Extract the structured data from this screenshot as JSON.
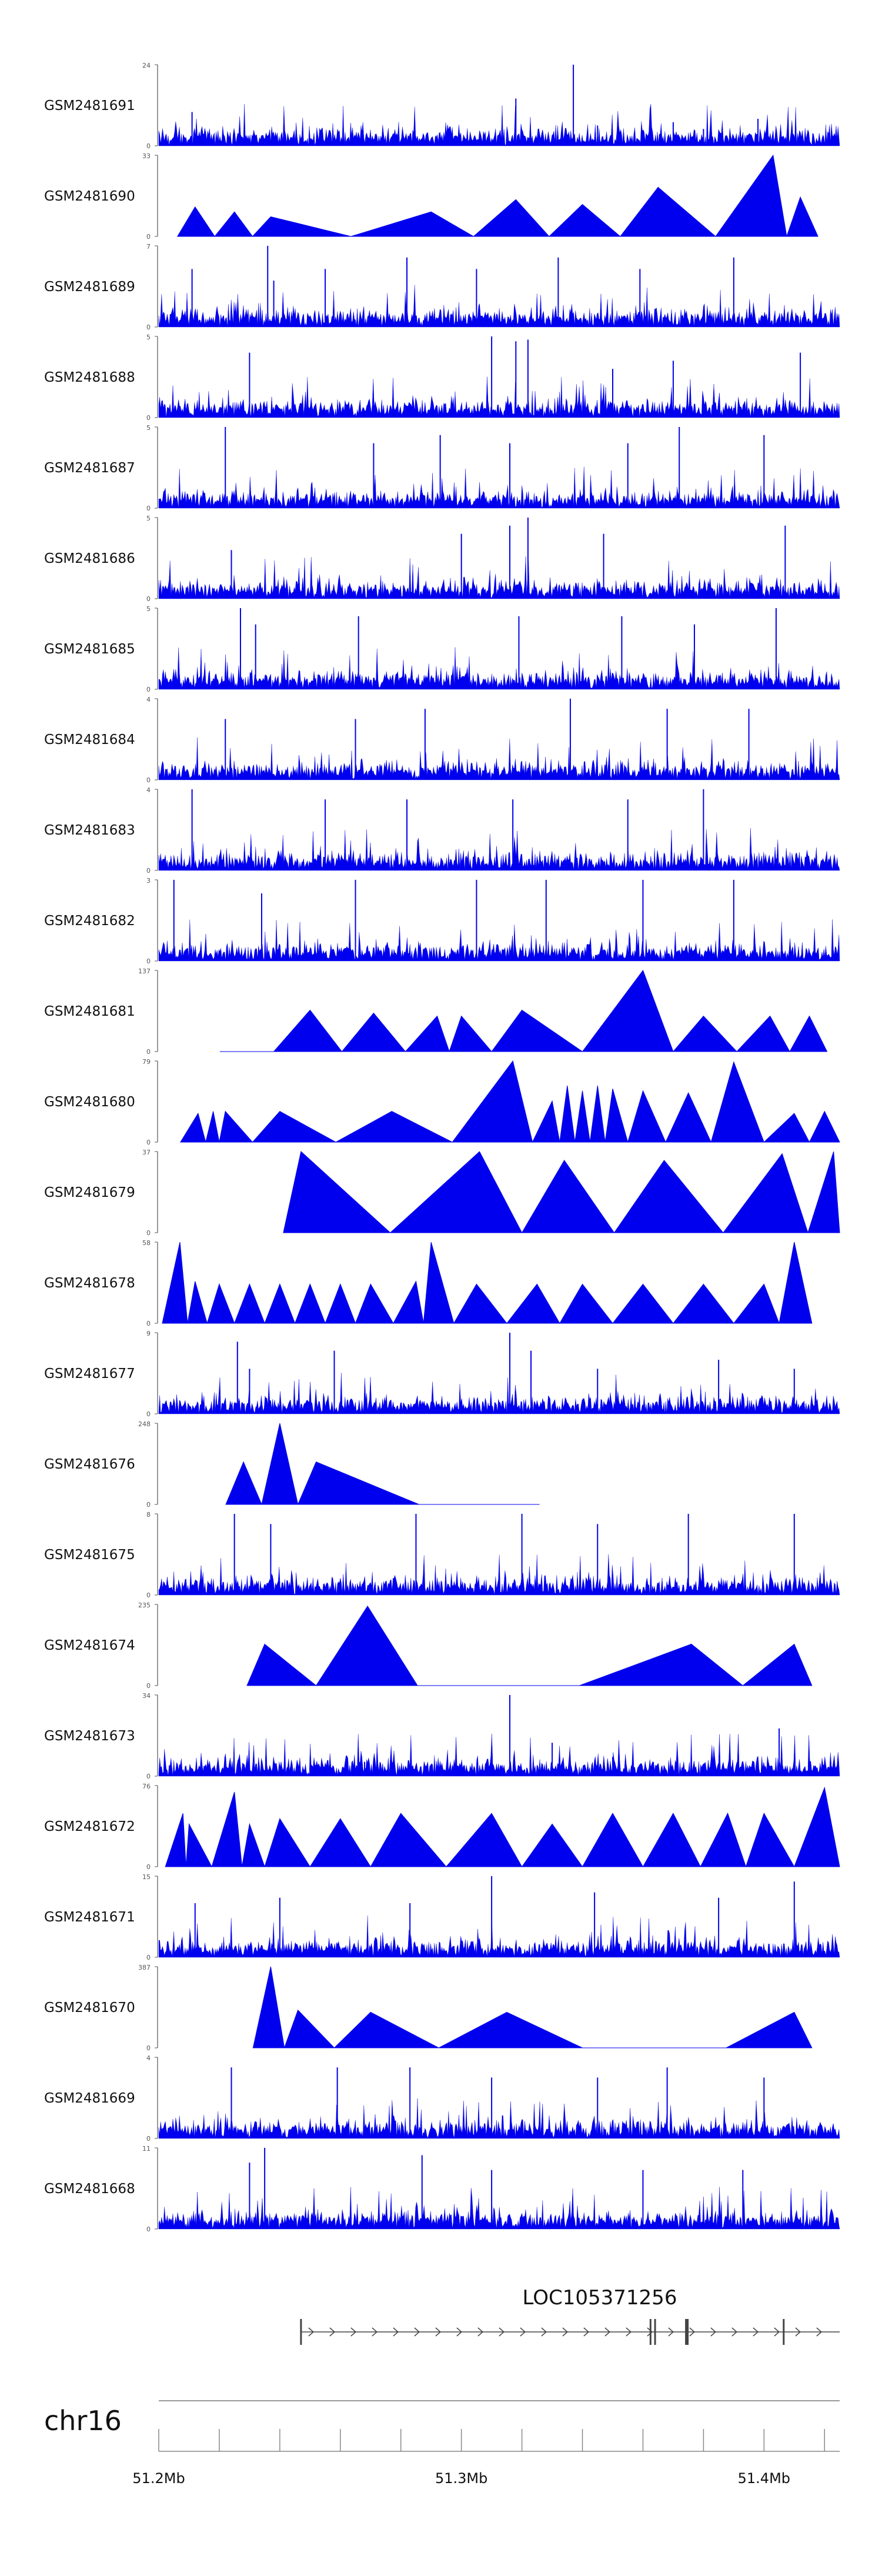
{
  "chart_data": {
    "type": "area",
    "description_free": true,
    "genome": {
      "chromosome": "chr16",
      "x_range_mb": [
        51.2,
        51.425
      ],
      "ticks_mb": [
        51.2,
        51.22,
        51.24,
        51.26,
        51.28,
        51.3,
        51.32,
        51.34,
        51.36,
        51.38,
        51.4,
        51.42
      ],
      "tick_labels": [
        {
          "value": 51.2,
          "label": "51.2Mb"
        },
        {
          "value": 51.3,
          "label": "51.3Mb"
        },
        {
          "value": 51.4,
          "label": "51.4Mb"
        }
      ]
    },
    "gene": {
      "name": "LOC105371256",
      "start_mb": 51.247,
      "end_mb": 51.425,
      "strand": "+",
      "exons_mb": [
        51.247,
        51.3625,
        51.364,
        51.3745,
        51.4065
      ]
    },
    "tracks": [
      {
        "name": "GSM2481691",
        "ymax": 24,
        "style": "spiky",
        "peaks": [
          [
            51.211,
            10
          ],
          [
            51.318,
            14
          ],
          [
            51.337,
            24
          ],
          [
            51.345,
            6
          ],
          [
            51.37,
            7
          ],
          [
            51.38,
            5
          ],
          [
            51.398,
            8
          ]
        ]
      },
      {
        "name": "GSM2481690",
        "ymax": 33,
        "style": "triangles",
        "peaks": [
          [
            51.212,
            12
          ],
          [
            51.225,
            10
          ],
          [
            51.237,
            8
          ],
          [
            51.29,
            10
          ],
          [
            51.318,
            15
          ],
          [
            51.34,
            13
          ],
          [
            51.365,
            20
          ],
          [
            51.403,
            33
          ],
          [
            51.412,
            16
          ]
        ]
      },
      {
        "name": "GSM2481689",
        "ymax": 7,
        "style": "spiky",
        "peaks": [
          [
            51.211,
            5
          ],
          [
            51.236,
            7
          ],
          [
            51.238,
            4
          ],
          [
            51.255,
            5
          ],
          [
            51.282,
            6
          ],
          [
            51.305,
            5
          ],
          [
            51.332,
            6
          ],
          [
            51.359,
            5
          ],
          [
            51.39,
            6
          ]
        ]
      },
      {
        "name": "GSM2481688",
        "ymax": 5,
        "style": "spiky",
        "peaks": [
          [
            51.23,
            4
          ],
          [
            51.31,
            5
          ],
          [
            51.318,
            4.7
          ],
          [
            51.322,
            4.8
          ],
          [
            51.35,
            3
          ],
          [
            51.37,
            3.5
          ],
          [
            51.412,
            4
          ]
        ]
      },
      {
        "name": "GSM2481687",
        "ymax": 5,
        "style": "spiky",
        "peaks": [
          [
            51.222,
            5
          ],
          [
            51.271,
            4
          ],
          [
            51.293,
            4.5
          ],
          [
            51.316,
            4
          ],
          [
            51.355,
            4
          ],
          [
            51.372,
            5
          ],
          [
            51.4,
            4.5
          ]
        ]
      },
      {
        "name": "GSM2481686",
        "ymax": 5,
        "style": "spiky",
        "peaks": [
          [
            51.224,
            3
          ],
          [
            51.3,
            4
          ],
          [
            51.316,
            4.5
          ],
          [
            51.322,
            5
          ],
          [
            51.347,
            4
          ],
          [
            51.407,
            4.5
          ]
        ]
      },
      {
        "name": "GSM2481685",
        "ymax": 5,
        "style": "spiky",
        "peaks": [
          [
            51.227,
            5
          ],
          [
            51.232,
            4
          ],
          [
            51.266,
            4.5
          ],
          [
            51.319,
            4.5
          ],
          [
            51.353,
            4.5
          ],
          [
            51.377,
            4
          ],
          [
            51.404,
            5
          ]
        ]
      },
      {
        "name": "GSM2481684",
        "ymax": 4,
        "style": "spiky",
        "peaks": [
          [
            51.222,
            3
          ],
          [
            51.265,
            3
          ],
          [
            51.288,
            3.5
          ],
          [
            51.336,
            4
          ],
          [
            51.368,
            3.5
          ],
          [
            51.395,
            3.5
          ]
        ]
      },
      {
        "name": "GSM2481683",
        "ymax": 4,
        "style": "spiky",
        "peaks": [
          [
            51.211,
            4
          ],
          [
            51.255,
            3.5
          ],
          [
            51.282,
            3.5
          ],
          [
            51.317,
            3.5
          ],
          [
            51.355,
            3.5
          ],
          [
            51.38,
            4
          ]
        ]
      },
      {
        "name": "GSM2481682",
        "ymax": 3,
        "style": "spiky",
        "peaks": [
          [
            51.205,
            3
          ],
          [
            51.234,
            2.5
          ],
          [
            51.265,
            3
          ],
          [
            51.305,
            3
          ],
          [
            51.328,
            3
          ],
          [
            51.36,
            3
          ],
          [
            51.39,
            3
          ]
        ]
      },
      {
        "name": "GSM2481681",
        "ymax": 137,
        "style": "triangles",
        "peaks": [
          [
            51.226,
            0
          ],
          [
            51.25,
            70
          ],
          [
            51.271,
            65
          ],
          [
            51.292,
            60
          ],
          [
            51.3,
            60
          ],
          [
            51.32,
            70
          ],
          [
            51.36,
            137
          ],
          [
            51.38,
            60
          ],
          [
            51.402,
            60
          ],
          [
            51.415,
            60
          ]
        ]
      },
      {
        "name": "GSM2481680",
        "ymax": 79,
        "style": "triangles",
        "peaks": [
          [
            51.213,
            28
          ],
          [
            51.218,
            30
          ],
          [
            51.222,
            30
          ],
          [
            51.24,
            30
          ],
          [
            51.277,
            30
          ],
          [
            51.317,
            79
          ],
          [
            51.33,
            40
          ],
          [
            51.335,
            55
          ],
          [
            51.34,
            50
          ],
          [
            51.345,
            55
          ],
          [
            51.35,
            52
          ],
          [
            51.36,
            50
          ],
          [
            51.375,
            48
          ],
          [
            51.39,
            78
          ],
          [
            51.41,
            28
          ],
          [
            51.42,
            30
          ]
        ]
      },
      {
        "name": "GSM2481679",
        "ymax": 37,
        "style": "triangles",
        "peaks": [
          [
            51.247,
            37
          ],
          [
            51.306,
            37
          ],
          [
            51.334,
            33
          ],
          [
            51.367,
            33
          ],
          [
            51.406,
            36
          ],
          [
            51.423,
            37
          ]
        ]
      },
      {
        "name": "GSM2481678",
        "ymax": 58,
        "style": "triangles",
        "peaks": [
          [
            51.207,
            58
          ],
          [
            51.212,
            30
          ],
          [
            51.22,
            28
          ],
          [
            51.23,
            28
          ],
          [
            51.24,
            28
          ],
          [
            51.25,
            28
          ],
          [
            51.26,
            28
          ],
          [
            51.27,
            28
          ],
          [
            51.285,
            30
          ],
          [
            51.29,
            58
          ],
          [
            51.305,
            28
          ],
          [
            51.325,
            28
          ],
          [
            51.34,
            28
          ],
          [
            51.36,
            28
          ],
          [
            51.38,
            28
          ],
          [
            51.4,
            28
          ],
          [
            51.41,
            58
          ]
        ]
      },
      {
        "name": "GSM2481677",
        "ymax": 9,
        "style": "spiky",
        "peaks": [
          [
            51.226,
            8
          ],
          [
            51.23,
            5
          ],
          [
            51.258,
            7
          ],
          [
            51.316,
            9
          ],
          [
            51.323,
            7
          ],
          [
            51.345,
            5
          ],
          [
            51.385,
            6
          ],
          [
            51.41,
            5
          ]
        ]
      },
      {
        "name": "GSM2481676",
        "ymax": 248,
        "style": "triangles",
        "peaks": [
          [
            51.228,
            130
          ],
          [
            51.24,
            250
          ],
          [
            51.252,
            130
          ],
          [
            51.32,
            0
          ]
        ]
      },
      {
        "name": "GSM2481675",
        "ymax": 8,
        "style": "spiky",
        "peaks": [
          [
            51.225,
            8
          ],
          [
            51.237,
            7
          ],
          [
            51.285,
            8
          ],
          [
            51.32,
            8
          ],
          [
            51.345,
            7
          ],
          [
            51.375,
            8
          ],
          [
            51.41,
            8
          ]
        ]
      },
      {
        "name": "GSM2481674",
        "ymax": 235,
        "style": "triangles",
        "peaks": [
          [
            51.235,
            120
          ],
          [
            51.269,
            230
          ],
          [
            51.302,
            0
          ],
          [
            51.376,
            120
          ],
          [
            51.41,
            120
          ]
        ]
      },
      {
        "name": "GSM2481673",
        "ymax": 34,
        "style": "spiky",
        "peaks": [
          [
            51.268,
            6
          ],
          [
            51.316,
            34
          ],
          [
            51.33,
            14
          ],
          [
            51.35,
            8
          ],
          [
            51.405,
            20
          ]
        ]
      },
      {
        "name": "GSM2481672",
        "ymax": 76,
        "style": "triangles",
        "peaks": [
          [
            51.208,
            50
          ],
          [
            51.21,
            40
          ],
          [
            51.225,
            70
          ],
          [
            51.23,
            40
          ],
          [
            51.24,
            45
          ],
          [
            51.26,
            45
          ],
          [
            51.28,
            50
          ],
          [
            51.31,
            50
          ],
          [
            51.33,
            40
          ],
          [
            51.35,
            50
          ],
          [
            51.37,
            50
          ],
          [
            51.388,
            50
          ],
          [
            51.4,
            50
          ],
          [
            51.42,
            74
          ]
        ]
      },
      {
        "name": "GSM2481671",
        "ymax": 15,
        "style": "spiky",
        "peaks": [
          [
            51.212,
            10
          ],
          [
            51.24,
            11
          ],
          [
            51.283,
            10
          ],
          [
            51.31,
            15
          ],
          [
            51.344,
            12
          ],
          [
            51.385,
            11
          ],
          [
            51.41,
            14
          ]
        ]
      },
      {
        "name": "GSM2481670",
        "ymax": 387,
        "style": "triangles",
        "peaks": [
          [
            51.237,
            387
          ],
          [
            51.246,
            180
          ],
          [
            51.27,
            170
          ],
          [
            51.315,
            170
          ],
          [
            51.365,
            0
          ],
          [
            51.41,
            170
          ]
        ]
      },
      {
        "name": "GSM2481669",
        "ymax": 4,
        "style": "spiky",
        "peaks": [
          [
            51.224,
            3.5
          ],
          [
            51.259,
            3.5
          ],
          [
            51.283,
            3.5
          ],
          [
            51.31,
            3
          ],
          [
            51.345,
            3
          ],
          [
            51.368,
            3.5
          ],
          [
            51.4,
            3
          ]
        ]
      },
      {
        "name": "GSM2481668",
        "ymax": 11,
        "style": "spiky",
        "peaks": [
          [
            51.23,
            9
          ],
          [
            51.235,
            11
          ],
          [
            51.287,
            10
          ],
          [
            51.31,
            8
          ],
          [
            51.36,
            8
          ],
          [
            51.393,
            8
          ]
        ]
      }
    ],
    "ylabel_min": "0"
  },
  "colors": {
    "signal": "#0000ee",
    "axis": "#555555",
    "label": "#111111",
    "gene": "#444444"
  }
}
